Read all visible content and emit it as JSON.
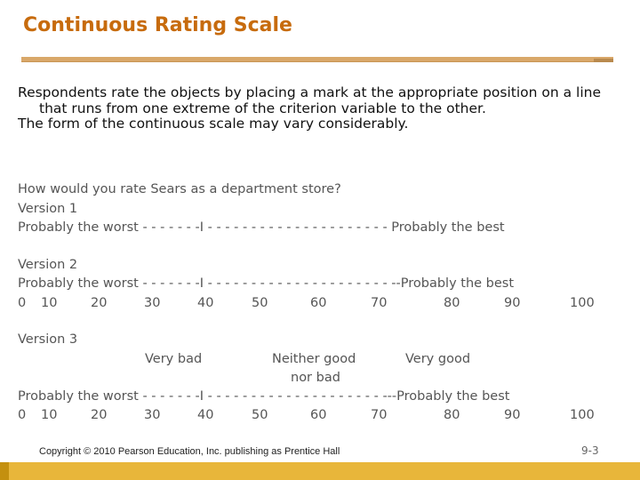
{
  "title": "Continuous Rating Scale",
  "intro": {
    "p1": "Respondents rate the objects by placing a mark at the appropriate position on a line that runs from one extreme of the criterion variable to the other.",
    "p2": "The form of the continuous scale may vary considerably."
  },
  "question": "How would you rate Sears as a department store?",
  "v1": {
    "label": "Version 1",
    "line": "Probably the worst - - - - - - -I - - - - - - - - - - - - - - - - - - - - - Probably the best"
  },
  "v2": {
    "label": "Version 2",
    "line": "Probably the worst - - - - - - -I - - - - - - - - - - - - - - - - - - - - - --Probably the best",
    "ticks": [
      "0",
      "10",
      "20",
      "30",
      "40",
      "50",
      "60",
      "70",
      "80",
      "90",
      "100"
    ]
  },
  "v3": {
    "label": "Version 3",
    "anchor_bad": "Very bad",
    "anchor_neutral_1": "Neither good",
    "anchor_neutral_2": "nor bad",
    "anchor_good": "Very good",
    "line": "Probably the worst - - - - - - -I - - - - - - - - - - - -  - - - - - - - - ---Probably the best",
    "ticks": [
      "0",
      "10",
      "20",
      "30",
      "40",
      "50",
      "60",
      "70",
      "80",
      "90",
      "100"
    ]
  },
  "footer": {
    "copyright": "Copyright © 2010 Pearson Education, Inc. publishing as Prentice Hall",
    "page": "9-3"
  }
}
